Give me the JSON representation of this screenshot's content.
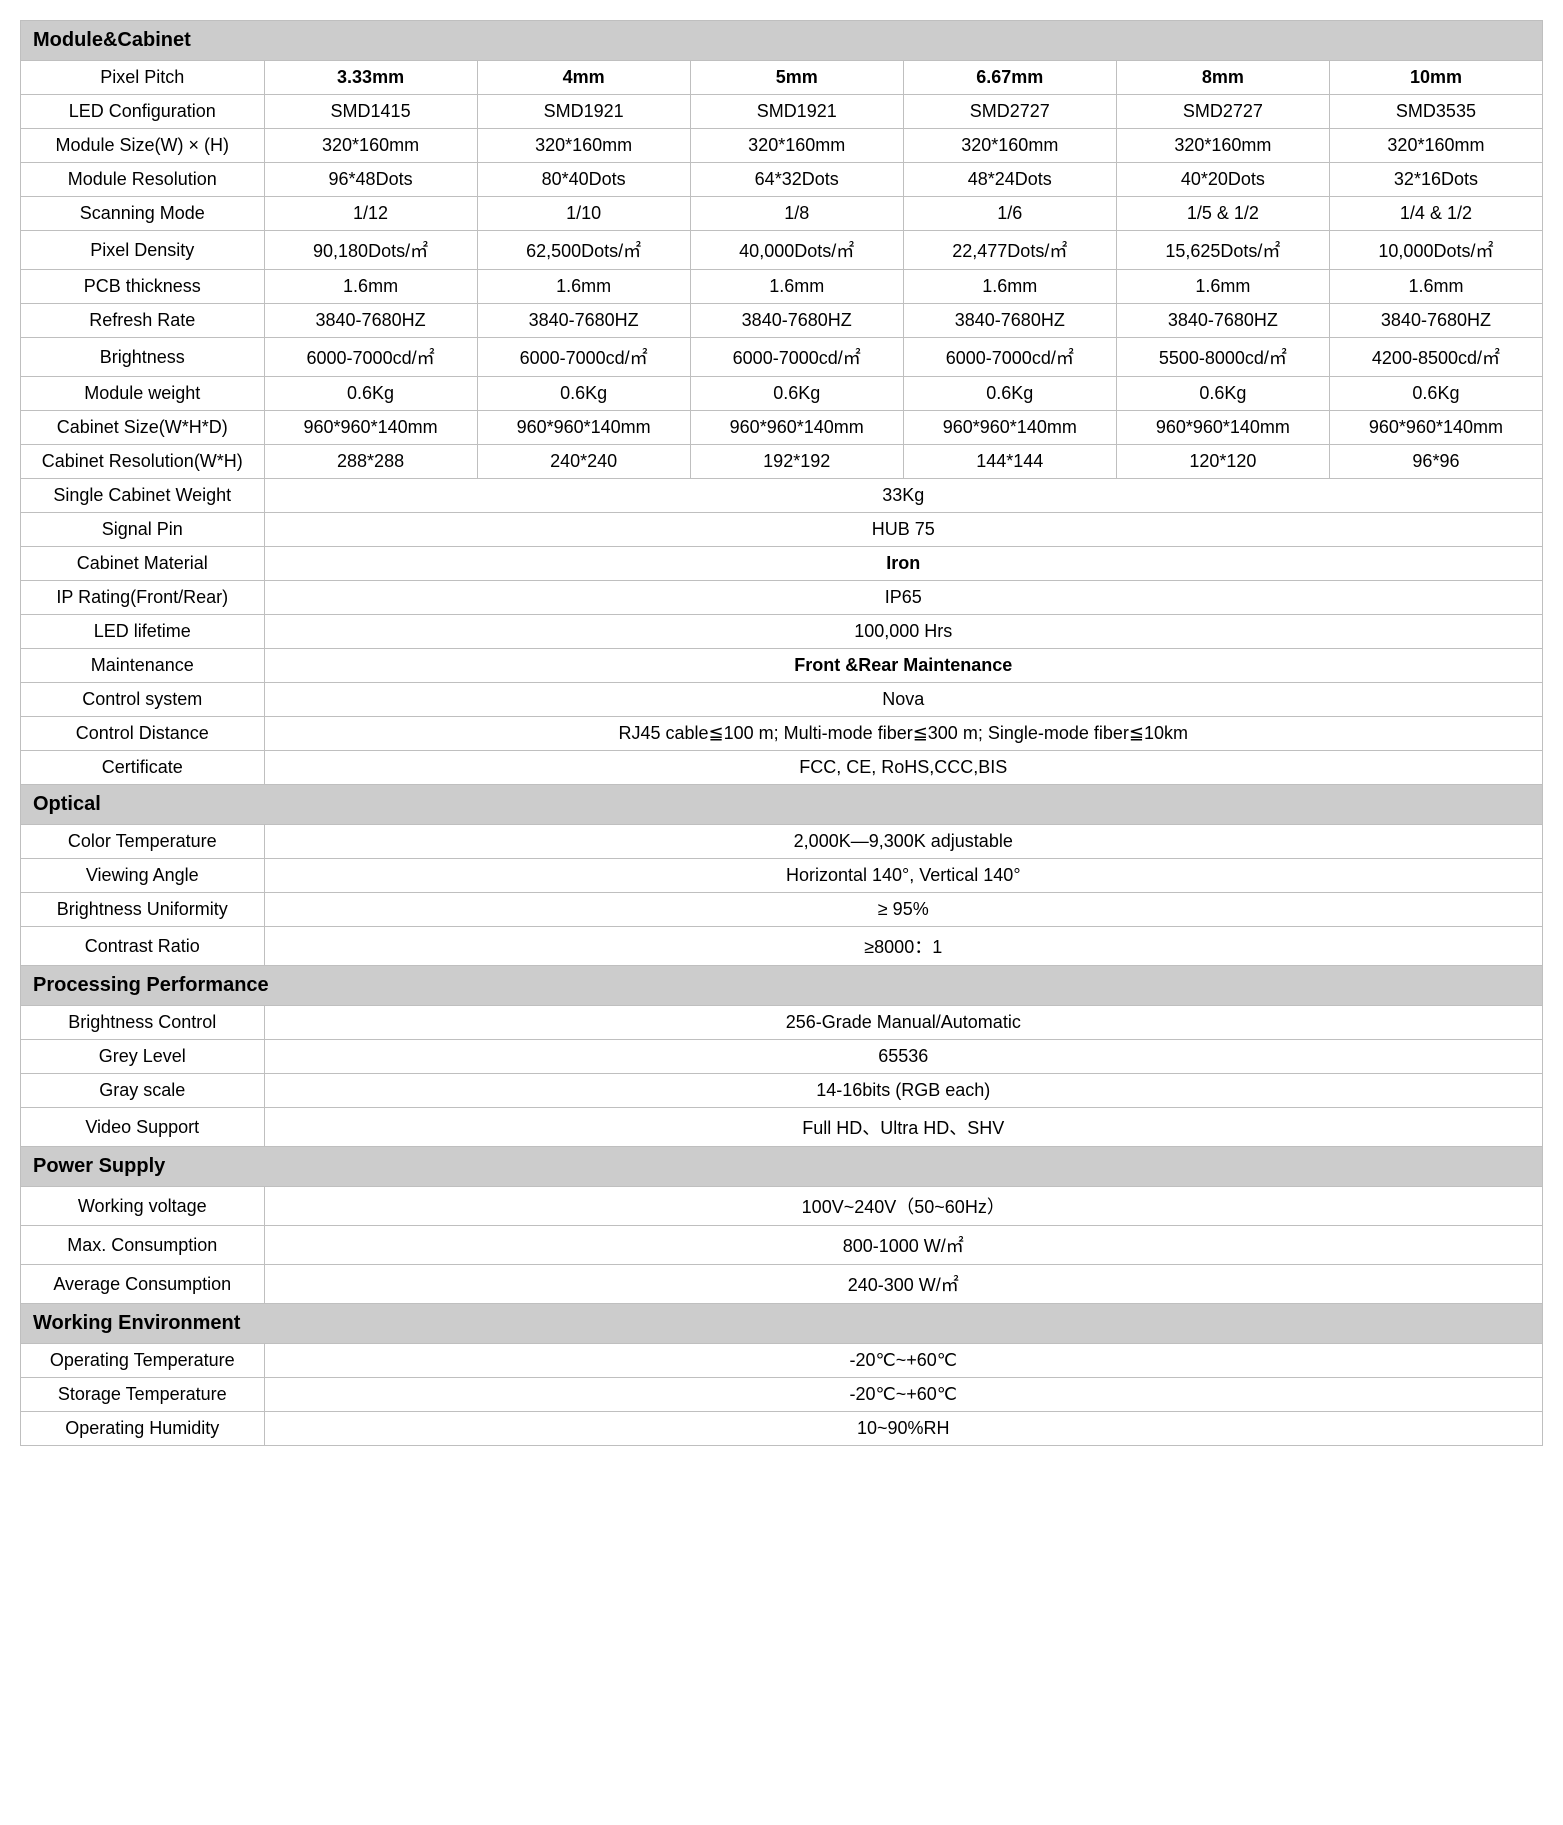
{
  "colors": {
    "border": "#bfbfbf",
    "section_bg": "#cccccc",
    "background": "#ffffff",
    "text": "#000000"
  },
  "sections": {
    "module_cabinet": {
      "title": "Module&Cabinet",
      "header_row": [
        "Pixel Pitch",
        "3.33mm",
        "4mm",
        "5mm",
        "6.67mm",
        "8mm",
        "10mm"
      ],
      "rows6": [
        {
          "label": "LED Configuration",
          "cells": [
            "SMD1415",
            "SMD1921",
            "SMD1921",
            "SMD2727",
            "SMD2727",
            "SMD3535"
          ]
        },
        {
          "label": "Module Size(W) × (H)",
          "cells": [
            "320*160mm",
            "320*160mm",
            "320*160mm",
            "320*160mm",
            "320*160mm",
            "320*160mm"
          ]
        },
        {
          "label": "Module Resolution",
          "cells": [
            "96*48Dots",
            "80*40Dots",
            "64*32Dots",
            "48*24Dots",
            "40*20Dots",
            "32*16Dots"
          ]
        },
        {
          "label": "Scanning Mode",
          "cells": [
            "1/12",
            "1/10",
            "1/8",
            "1/6",
            "1/5 & 1/2",
            "1/4 & 1/2"
          ]
        },
        {
          "label": "Pixel Density",
          "cells": [
            "90,180Dots/㎡",
            "62,500Dots/㎡",
            "40,000Dots/㎡",
            "22,477Dots/㎡",
            "15,625Dots/㎡",
            "10,000Dots/㎡"
          ]
        },
        {
          "label": "PCB thickness",
          "cells": [
            "1.6mm",
            "1.6mm",
            "1.6mm",
            "1.6mm",
            "1.6mm",
            "1.6mm"
          ]
        },
        {
          "label": "Refresh Rate",
          "cells": [
            "3840-7680HZ",
            "3840-7680HZ",
            "3840-7680HZ",
            "3840-7680HZ",
            "3840-7680HZ",
            "3840-7680HZ"
          ]
        },
        {
          "label": "Brightness",
          "cells": [
            "6000-7000cd/㎡",
            "6000-7000cd/㎡",
            "6000-7000cd/㎡",
            "6000-7000cd/㎡",
            "5500-8000cd/㎡",
            "4200-8500cd/㎡"
          ]
        },
        {
          "label": "Module weight",
          "cells": [
            "0.6Kg",
            "0.6Kg",
            "0.6Kg",
            "0.6Kg",
            "0.6Kg",
            "0.6Kg"
          ]
        },
        {
          "label": "Cabinet Size(W*H*D)",
          "cells": [
            "960*960*140mm",
            "960*960*140mm",
            "960*960*140mm",
            "960*960*140mm",
            "960*960*140mm",
            "960*960*140mm"
          ]
        },
        {
          "label": "Cabinet Resolution(W*H)",
          "cells": [
            "288*288",
            "240*240",
            "192*192",
            "144*144",
            "120*120",
            "96*96"
          ]
        }
      ],
      "merged_rows": [
        {
          "label": "Single Cabinet Weight",
          "value": "33Kg",
          "bold": false
        },
        {
          "label": "Signal Pin",
          "value": "HUB 75",
          "bold": false
        },
        {
          "label": "Cabinet Material",
          "value": "Iron",
          "bold": true
        },
        {
          "label": "IP Rating(Front/Rear)",
          "value": "IP65",
          "bold": false
        },
        {
          "label": "LED lifetime",
          "value": "100,000 Hrs",
          "bold": false
        },
        {
          "label": "Maintenance",
          "value": "Front &Rear Maintenance",
          "bold": true
        },
        {
          "label": "Control system",
          "value": "Nova",
          "bold": false
        },
        {
          "label": "Control Distance",
          "value": "RJ45 cable≦100 m; Multi-mode fiber≦300 m; Single-mode fiber≦10km",
          "bold": false
        },
        {
          "label": "Certificate",
          "value": "FCC, CE, RoHS,CCC,BIS",
          "bold": false
        }
      ]
    },
    "optical": {
      "title": "Optical",
      "rows": [
        {
          "label": "Color Temperature",
          "value": "2,000K—9,300K adjustable"
        },
        {
          "label": "Viewing Angle",
          "value": "Horizontal 140°, Vertical 140°"
        },
        {
          "label": "Brightness Uniformity",
          "value": "≥ 95%"
        },
        {
          "label": "Contrast Ratio",
          "value": "≥8000：1"
        }
      ]
    },
    "processing": {
      "title": "Processing Performance",
      "rows": [
        {
          "label": "Brightness Control",
          "value": "256-Grade Manual/Automatic"
        },
        {
          "label": "Grey Level",
          "value": "65536"
        },
        {
          "label": "Gray scale",
          "value": "14-16bits (RGB each)"
        },
        {
          "label": "Video Support",
          "value": "Full HD、Ultra HD、SHV"
        }
      ]
    },
    "power": {
      "title": "Power Supply",
      "rows": [
        {
          "label": "Working voltage",
          "value": "100V~240V（50~60Hz）"
        },
        {
          "label": "Max. Consumption",
          "value": "800-1000 W/㎡"
        },
        {
          "label": "Average Consumption",
          "value": "240-300 W/㎡"
        }
      ]
    },
    "environment": {
      "title": "Working Environment",
      "rows": [
        {
          "label": "Operating Temperature",
          "value": "-20℃~+60℃"
        },
        {
          "label": "Storage Temperature",
          "value": "-20℃~+60℃"
        },
        {
          "label": "Operating Humidity",
          "value": "10~90%RH"
        }
      ]
    }
  }
}
